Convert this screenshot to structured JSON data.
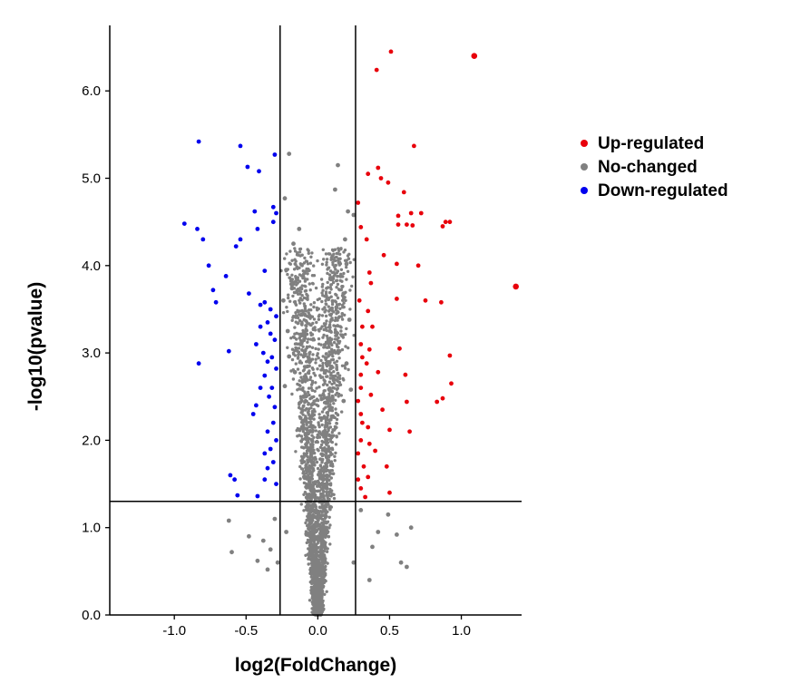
{
  "chart_data": {
    "type": "scatter",
    "title": "",
    "xlabel": "log2(FoldChange)",
    "ylabel": "-log10(pvalue)",
    "xlim": [
      -1.45,
      1.42
    ],
    "ylim": [
      0,
      6.75
    ],
    "xticks": [
      -1.0,
      -0.5,
      0.0,
      0.5,
      1.0
    ],
    "xtick_labels": [
      "-1.0",
      "-0.5",
      "0.0",
      "0.5",
      "1.0"
    ],
    "yticks": [
      0,
      1,
      2,
      3,
      4,
      5,
      6
    ],
    "ytick_labels": [
      "0.0",
      "1.0",
      "2.0",
      "3.0",
      "4.0",
      "5.0",
      "6.0"
    ],
    "grid": false,
    "legend_position": "right",
    "thresholds": {
      "x": [
        -0.263,
        0.263
      ],
      "y": 1.301
    },
    "series": [
      {
        "name": "Up-regulated",
        "color": "#e8000b",
        "points": [
          [
            0.51,
            6.45
          ],
          [
            1.09,
            6.4
          ],
          [
            0.41,
            6.24
          ],
          [
            0.67,
            5.37
          ],
          [
            0.42,
            5.12
          ],
          [
            0.35,
            5.05
          ],
          [
            0.44,
            5.0
          ],
          [
            0.49,
            4.95
          ],
          [
            0.6,
            4.84
          ],
          [
            0.28,
            4.72
          ],
          [
            0.65,
            4.6
          ],
          [
            0.72,
            4.6
          ],
          [
            0.56,
            4.57
          ],
          [
            0.89,
            4.5
          ],
          [
            0.92,
            4.5
          ],
          [
            0.56,
            4.47
          ],
          [
            0.62,
            4.47
          ],
          [
            0.66,
            4.46
          ],
          [
            0.87,
            4.45
          ],
          [
            0.3,
            4.44
          ],
          [
            0.34,
            4.3
          ],
          [
            0.46,
            4.12
          ],
          [
            0.55,
            4.02
          ],
          [
            0.7,
            4.0
          ],
          [
            0.36,
            3.92
          ],
          [
            1.38,
            3.76
          ],
          [
            0.37,
            3.8
          ],
          [
            0.29,
            3.6
          ],
          [
            0.55,
            3.62
          ],
          [
            0.75,
            3.6
          ],
          [
            0.86,
            3.58
          ],
          [
            0.35,
            3.48
          ],
          [
            0.31,
            3.3
          ],
          [
            0.38,
            3.3
          ],
          [
            0.3,
            3.1
          ],
          [
            0.36,
            3.04
          ],
          [
            0.57,
            3.05
          ],
          [
            0.31,
            2.95
          ],
          [
            0.92,
            2.97
          ],
          [
            0.34,
            2.88
          ],
          [
            0.3,
            2.75
          ],
          [
            0.42,
            2.78
          ],
          [
            0.61,
            2.75
          ],
          [
            0.3,
            2.6
          ],
          [
            0.93,
            2.65
          ],
          [
            0.37,
            2.52
          ],
          [
            0.87,
            2.48
          ],
          [
            0.28,
            2.45
          ],
          [
            0.62,
            2.44
          ],
          [
            0.83,
            2.44
          ],
          [
            0.3,
            2.3
          ],
          [
            0.45,
            2.35
          ],
          [
            0.31,
            2.2
          ],
          [
            0.35,
            2.15
          ],
          [
            0.5,
            2.12
          ],
          [
            0.64,
            2.1
          ],
          [
            0.3,
            2.0
          ],
          [
            0.36,
            1.96
          ],
          [
            0.28,
            1.85
          ],
          [
            0.4,
            1.88
          ],
          [
            0.32,
            1.7
          ],
          [
            0.48,
            1.7
          ],
          [
            0.28,
            1.55
          ],
          [
            0.35,
            1.58
          ],
          [
            0.3,
            1.45
          ],
          [
            0.5,
            1.4
          ],
          [
            0.33,
            1.35
          ]
        ]
      },
      {
        "name": "No-changed",
        "color": "#808080",
        "points": [
          [
            -0.2,
            5.28
          ],
          [
            0.14,
            5.15
          ],
          [
            0.12,
            4.87
          ],
          [
            -0.23,
            4.77
          ],
          [
            0.21,
            4.62
          ],
          [
            0.25,
            4.58
          ],
          [
            -0.13,
            4.42
          ],
          [
            0.19,
            4.3
          ],
          [
            -0.17,
            4.25
          ],
          [
            0.2,
            4.02
          ],
          [
            -0.22,
            3.95
          ],
          [
            0.16,
            3.88
          ],
          [
            -0.18,
            3.74
          ],
          [
            0.18,
            3.68
          ],
          [
            -0.24,
            3.6
          ],
          [
            0.13,
            3.52
          ],
          [
            -0.15,
            3.42
          ],
          [
            0.22,
            3.38
          ],
          [
            -0.21,
            3.25
          ],
          [
            0.17,
            3.2
          ],
          [
            -0.12,
            3.1
          ],
          [
            0.15,
            3.02
          ],
          [
            -0.2,
            2.96
          ],
          [
            0.2,
            2.88
          ],
          [
            -0.16,
            2.78
          ],
          [
            0.11,
            2.7
          ],
          [
            -0.23,
            2.62
          ],
          [
            0.23,
            2.58
          ],
          [
            -0.1,
            2.5
          ],
          [
            0.18,
            2.45
          ],
          [
            -0.62,
            1.08
          ],
          [
            -0.6,
            0.72
          ],
          [
            -0.48,
            0.9
          ],
          [
            -0.38,
            0.85
          ],
          [
            -0.35,
            0.52
          ],
          [
            -0.33,
            0.75
          ],
          [
            -0.3,
            1.1
          ],
          [
            -0.22,
            0.95
          ],
          [
            -0.28,
            0.6
          ],
          [
            -0.42,
            0.62
          ],
          [
            0.3,
            1.2
          ],
          [
            0.38,
            0.78
          ],
          [
            0.42,
            0.95
          ],
          [
            0.55,
            0.92
          ],
          [
            0.58,
            0.6
          ],
          [
            0.62,
            0.55
          ],
          [
            0.65,
            1.0
          ],
          [
            0.49,
            1.15
          ],
          [
            0.36,
            0.4
          ],
          [
            0.25,
            0.6
          ]
        ]
      },
      {
        "name": "Down-regulated",
        "color": "#0000ee",
        "points": [
          [
            -0.83,
            5.42
          ],
          [
            -0.54,
            5.37
          ],
          [
            -0.3,
            5.27
          ],
          [
            -0.41,
            5.08
          ],
          [
            -0.49,
            5.13
          ],
          [
            -0.93,
            4.48
          ],
          [
            -0.84,
            4.42
          ],
          [
            -0.8,
            4.3
          ],
          [
            -0.54,
            4.3
          ],
          [
            -0.57,
            4.22
          ],
          [
            -0.42,
            4.42
          ],
          [
            -0.31,
            4.5
          ],
          [
            -0.44,
            4.62
          ],
          [
            -0.31,
            4.67
          ],
          [
            -0.29,
            4.6
          ],
          [
            -0.76,
            4.0
          ],
          [
            -0.64,
            3.88
          ],
          [
            -0.37,
            3.94
          ],
          [
            -0.73,
            3.72
          ],
          [
            -0.48,
            3.68
          ],
          [
            -0.71,
            3.58
          ],
          [
            -0.37,
            3.58
          ],
          [
            -0.4,
            3.55
          ],
          [
            -0.33,
            3.5
          ],
          [
            -0.29,
            3.42
          ],
          [
            -0.35,
            3.35
          ],
          [
            -0.4,
            3.3
          ],
          [
            -0.33,
            3.22
          ],
          [
            -0.3,
            3.15
          ],
          [
            -0.43,
            3.1
          ],
          [
            -0.38,
            3.0
          ],
          [
            -0.62,
            3.02
          ],
          [
            -0.32,
            2.95
          ],
          [
            -0.35,
            2.9
          ],
          [
            -0.83,
            2.88
          ],
          [
            -0.29,
            2.82
          ],
          [
            -0.37,
            2.74
          ],
          [
            -0.4,
            2.6
          ],
          [
            -0.32,
            2.6
          ],
          [
            -0.34,
            2.5
          ],
          [
            -0.43,
            2.4
          ],
          [
            -0.3,
            2.38
          ],
          [
            -0.45,
            2.3
          ],
          [
            -0.31,
            2.2
          ],
          [
            -0.35,
            2.1
          ],
          [
            -0.29,
            2.0
          ],
          [
            -0.33,
            1.9
          ],
          [
            -0.37,
            1.85
          ],
          [
            -0.31,
            1.75
          ],
          [
            -0.35,
            1.68
          ],
          [
            -0.61,
            1.6
          ],
          [
            -0.37,
            1.55
          ],
          [
            -0.58,
            1.55
          ],
          [
            -0.29,
            1.5
          ],
          [
            -0.56,
            1.37
          ],
          [
            -0.42,
            1.36
          ]
        ]
      }
    ]
  }
}
